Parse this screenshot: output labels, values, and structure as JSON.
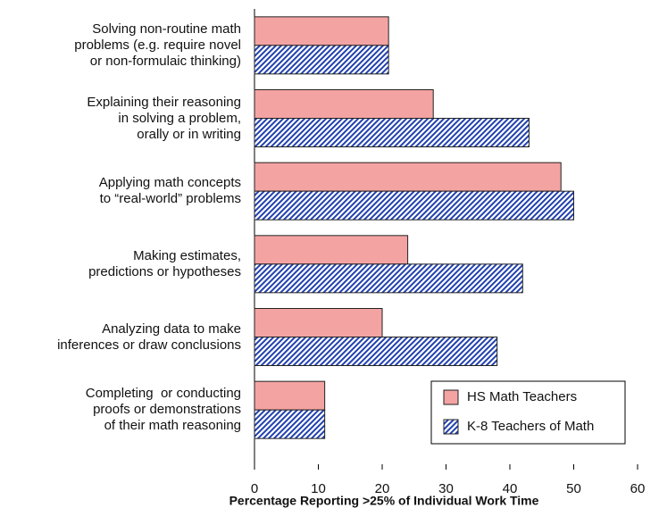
{
  "chart_data": {
    "type": "hbar",
    "x_label": "Percentage Reporting >25% of Individual Work Time",
    "categories": [
      "Solving non-routine math\nproblems (e.g. require novel\nor non-formulaic thinking)",
      "Explaining their reasoning\nin solving a problem,\norally or in writing",
      "Applying math concepts\nto “real-world” problems",
      "Making estimates,\npredictions or hypotheses",
      "Analyzing data to make\ninferences or draw conclusions",
      "Completing  or conducting\nproofs or demonstrations\nof their math reasoning"
    ],
    "series": [
      {
        "name": "HS Math Teachers",
        "color": "#f4a3a3",
        "values": [
          21,
          28,
          48,
          24,
          20,
          11
        ]
      },
      {
        "name": "K-8 Teachers of Math",
        "color": "#1f3fae",
        "pattern": "hatch",
        "values": [
          21,
          43,
          50,
          42,
          38,
          11
        ]
      }
    ],
    "xlim": [
      0,
      60
    ],
    "xticks": [
      0,
      10,
      20,
      30,
      40,
      50,
      60
    ],
    "legend": "lower right"
  }
}
